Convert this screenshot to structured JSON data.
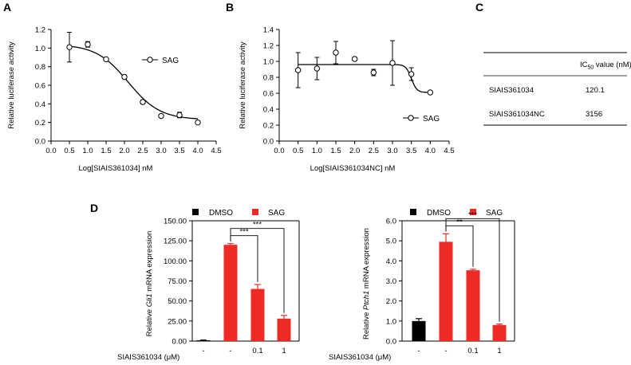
{
  "panels": {
    "a": {
      "label": "A",
      "chart_data": {
        "type": "scatter",
        "title": "",
        "xlabel": "Log[SIAIS361034] nM",
        "ylabel": "Relative luciferase activity",
        "xlim": [
          0,
          4.5
        ],
        "ylim": [
          0,
          1.2
        ],
        "xticks": [
          "0.0",
          "0.5",
          "1.0",
          "1.5",
          "2.0",
          "2.5",
          "3.0",
          "3.5",
          "4.0",
          "4.5"
        ],
        "yticks": [
          "0.0",
          "0.2",
          "0.4",
          "0.6",
          "0.8",
          "1.0",
          "1.2"
        ],
        "legend": "SAG",
        "fit": {
          "model": "sigmoid",
          "top": 1.04,
          "bottom": 0.23,
          "logIC50": 2.1,
          "hill": 1.0
        },
        "points": [
          {
            "x": 0.5,
            "y": 1.01,
            "err": 0.16
          },
          {
            "x": 1.0,
            "y": 1.04,
            "err": 0.03
          },
          {
            "x": 1.5,
            "y": 0.88,
            "err": 0.0
          },
          {
            "x": 2.0,
            "y": 0.69,
            "err": 0.02
          },
          {
            "x": 2.5,
            "y": 0.42,
            "err": 0.02
          },
          {
            "x": 3.0,
            "y": 0.27,
            "err": 0.0
          },
          {
            "x": 3.5,
            "y": 0.28,
            "err": 0.03
          },
          {
            "x": 4.0,
            "y": 0.2,
            "err": 0.01
          }
        ]
      }
    },
    "b": {
      "label": "B",
      "chart_data": {
        "type": "scatter",
        "title": "",
        "xlabel": "Log[SIAIS361034NC] nM",
        "ylabel": "Relative luciferase activity",
        "xlim": [
          0,
          4.5
        ],
        "ylim": [
          0,
          1.4
        ],
        "xticks": [
          "0.0",
          "0.5",
          "1.0",
          "1.5",
          "2.0",
          "2.5",
          "3.0",
          "3.5",
          "4.0",
          "4.5"
        ],
        "yticks": [
          "0.0",
          "0.2",
          "0.4",
          "0.6",
          "0.8",
          "1.0",
          "1.2",
          "1.4"
        ],
        "legend": "SAG",
        "fit": {
          "model": "sigmoid",
          "top": 0.96,
          "bottom": 0.61,
          "logIC50": 3.5,
          "hill": 6.0
        },
        "points": [
          {
            "x": 0.5,
            "y": 0.89,
            "err": 0.22
          },
          {
            "x": 1.0,
            "y": 0.91,
            "err": 0.14
          },
          {
            "x": 1.5,
            "y": 1.11,
            "err": 0.14
          },
          {
            "x": 2.0,
            "y": 1.03,
            "err": 0.02
          },
          {
            "x": 2.5,
            "y": 0.86,
            "err": 0.04
          },
          {
            "x": 3.0,
            "y": 0.98,
            "err": 0.28
          },
          {
            "x": 3.5,
            "y": 0.84,
            "err": 0.08
          },
          {
            "x": 4.0,
            "y": 0.61,
            "err": 0.0
          }
        ]
      }
    },
    "c": {
      "label": "C",
      "header_prefix": "IC",
      "header_sub": "50",
      "header_suffix": " value (nM)",
      "rows": [
        {
          "compound": "SIAIS361034",
          "value": "120.1"
        },
        {
          "compound": "SIAIS361034NC",
          "value": "3156"
        }
      ]
    },
    "d": {
      "label": "D",
      "treatment_label": "SIAIS361034 (μM)",
      "legend": [
        {
          "name": "DMSO",
          "color": "#000000"
        },
        {
          "name": "SAG",
          "color": "#ee2a24"
        }
      ],
      "charts": [
        {
          "type": "bar",
          "ylabel_prefix": "Relative ",
          "ylabel_gene": "Gli1",
          "ylabel_suffix": " mRNA expression",
          "ylim": [
            0,
            150
          ],
          "yticks": [
            "0.00",
            "25.00",
            "50.00",
            "75.00",
            "100.00",
            "125.00",
            "150.00"
          ],
          "categories": [
            "-",
            "-",
            "0.1",
            "1"
          ],
          "groups": [
            "DMSO",
            "SAG",
            "SAG",
            "SAG"
          ],
          "colors": [
            "#000000",
            "#ee2a24",
            "#ee2a24",
            "#ee2a24"
          ],
          "values": [
            1.0,
            120.0,
            65.0,
            28.0
          ],
          "errors": [
            0.3,
            1.5,
            5.5,
            4.0
          ],
          "significance": [
            {
              "from": 1,
              "to": 2,
              "label": "***"
            },
            {
              "from": 1,
              "to": 3,
              "label": "***"
            }
          ]
        },
        {
          "type": "bar",
          "ylabel_prefix": "Relative ",
          "ylabel_gene": "Ptch1",
          "ylabel_suffix": " mRNA expression",
          "ylim": [
            0,
            6
          ],
          "yticks": [
            "0.0",
            "1.0",
            "2.0",
            "3.0",
            "4.0",
            "5.0",
            "6.0"
          ],
          "categories": [
            "-",
            "-",
            "0.1",
            "1"
          ],
          "groups": [
            "DMSO",
            "SAG",
            "SAG",
            "SAG"
          ],
          "colors": [
            "#000000",
            "#ee2a24",
            "#ee2a24",
            "#ee2a24"
          ],
          "values": [
            1.0,
            4.95,
            3.53,
            0.8
          ],
          "errors": [
            0.12,
            0.4,
            0.05,
            0.05
          ],
          "significance": [
            {
              "from": 1,
              "to": 2,
              "label": "**"
            },
            {
              "from": 1,
              "to": 3,
              "label": "***"
            }
          ]
        }
      ]
    }
  }
}
